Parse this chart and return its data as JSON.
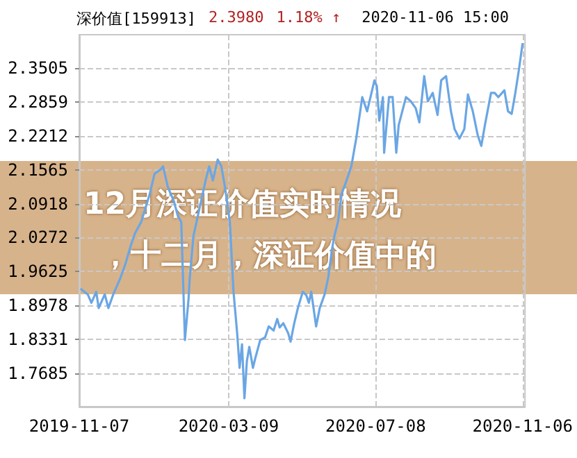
{
  "chart_data": {
    "type": "line",
    "title": "深价值[159913]",
    "annotations": [
      "2.3980",
      "1.18% ↑",
      "2020-11-06 15:00",
      "12月深证价值实时情况",
      "，十二月，深证价值中的"
    ],
    "x": [
      "2019-11-08",
      "2019-11-14",
      "2019-11-17",
      "2019-11-21",
      "2019-11-23",
      "2019-11-28",
      "2019-12-01",
      "2019-12-05",
      "2019-12-11",
      "2019-12-15",
      "2019-12-19",
      "2019-12-23",
      "2019-12-28",
      "2020-01-04",
      "2020-01-08",
      "2020-01-13",
      "2020-01-15",
      "2020-01-19",
      "2020-01-24",
      "2020-01-27",
      "2020-01-30",
      "2020-02-02",
      "2020-02-05",
      "2020-02-06",
      "2020-02-09",
      "2020-02-14",
      "2020-02-19",
      "2020-02-22",
      "2020-02-25",
      "2020-02-29",
      "2020-03-03",
      "2020-03-06",
      "2020-03-10",
      "2020-03-13",
      "2020-03-16",
      "2020-03-18",
      "2020-03-20",
      "2020-03-22",
      "2020-03-24",
      "2020-03-26",
      "2020-03-29",
      "2020-03-31",
      "2020-04-04",
      "2020-04-08",
      "2020-04-11",
      "2020-04-15",
      "2020-04-18",
      "2020-04-20",
      "2020-04-23",
      "2020-04-27",
      "2020-04-29",
      "2020-05-02",
      "2020-05-05",
      "2020-05-09",
      "2020-05-12",
      "2020-05-14",
      "2020-05-16",
      "2020-05-20",
      "2020-05-23",
      "2020-05-27",
      "2020-05-30",
      "2020-06-02",
      "2020-06-04",
      "2020-06-07",
      "2020-06-10",
      "2020-06-14",
      "2020-06-18",
      "2020-06-22",
      "2020-06-27",
      "2020-07-01",
      "2020-07-07",
      "2020-07-09",
      "2020-07-11",
      "2020-07-14",
      "2020-07-15",
      "2020-07-19",
      "2020-07-22",
      "2020-07-25",
      "2020-07-27",
      "2020-08-02",
      "2020-08-06",
      "2020-08-10",
      "2020-08-13",
      "2020-08-17",
      "2020-08-20",
      "2020-08-24",
      "2020-08-28",
      "2020-08-31",
      "2020-09-04",
      "2020-09-08",
      "2020-09-11",
      "2020-09-15",
      "2020-09-19",
      "2020-09-22",
      "2020-09-26",
      "2020-09-30",
      "2020-10-03",
      "2020-10-06",
      "2020-10-11",
      "2020-10-14",
      "2020-10-17",
      "2020-10-22",
      "2020-10-25",
      "2020-10-28",
      "2020-10-31",
      "2020-11-03",
      "2020-11-06"
    ],
    "series": [
      {
        "color": "#6aa6e4",
        "values": [
          1.93,
          1.919,
          1.903,
          1.924,
          1.893,
          1.919,
          1.893,
          1.919,
          1.951,
          1.977,
          2.009,
          2.036,
          2.057,
          2.11,
          2.149,
          2.157,
          2.163,
          2.123,
          2.096,
          2.07,
          2.057,
          1.832,
          1.911,
          1.951,
          2.03,
          2.083,
          2.136,
          2.163,
          2.136,
          2.176,
          2.163,
          2.123,
          2.057,
          1.924,
          1.845,
          1.779,
          1.824,
          1.721,
          1.792,
          1.819,
          1.779,
          1.798,
          1.832,
          1.837,
          1.858,
          1.85,
          1.872,
          1.856,
          1.864,
          1.845,
          1.829,
          1.864,
          1.893,
          1.924,
          1.917,
          1.903,
          1.924,
          1.858,
          1.893,
          1.919,
          1.951,
          2.004,
          2.03,
          2.057,
          2.11,
          2.136,
          2.163,
          2.216,
          2.295,
          2.268,
          2.327,
          2.316,
          2.25,
          2.295,
          2.189,
          2.295,
          2.295,
          2.189,
          2.242,
          2.295,
          2.287,
          2.274,
          2.247,
          2.335,
          2.287,
          2.303,
          2.261,
          2.327,
          2.335,
          2.268,
          2.234,
          2.216,
          2.234,
          2.3,
          2.268,
          2.223,
          2.202,
          2.242,
          2.303,
          2.303,
          2.295,
          2.308,
          2.268,
          2.263,
          2.303,
          2.348,
          2.398
        ]
      }
    ],
    "xlim": [
      "2019-11-07",
      "2020-11-08"
    ],
    "xticks": [
      "2019-11-07",
      "2020-03-09",
      "2020-07-08",
      "2020-11-06"
    ],
    "ylim": [
      1.705,
      2.414
    ],
    "yticks": [
      1.7685,
      1.8331,
      1.8978,
      1.9625,
      2.0272,
      2.0918,
      2.1565,
      2.2212,
      2.2859,
      2.3505
    ],
    "grid": true,
    "marker": "none",
    "line_style": "solid"
  }
}
